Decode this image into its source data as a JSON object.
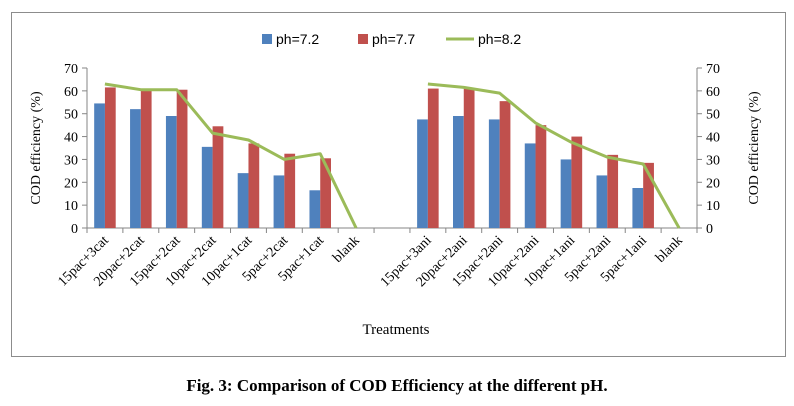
{
  "chart_data": {
    "type": "bar",
    "title": "",
    "xlabel": "Treatments",
    "ylabel": "COD efficiency (%)",
    "y2label": "COD efficiency (%)",
    "ylim": [
      0,
      70
    ],
    "yticks": [
      0,
      10,
      20,
      30,
      40,
      50,
      60,
      70
    ],
    "legend_position": "top",
    "grid": false,
    "categories": [
      "15pac+3cat",
      "20pac+2cat",
      "15pac+2cat",
      "10pac+2cat",
      "10pac+1cat",
      "5pac+2cat",
      "5pac+1cat",
      "blank",
      "",
      "15pac+3ani",
      "20pac+2ani",
      "15pac+2ani",
      "10pac+2ani",
      "10pac+1ani",
      "5pac+2ani",
      "5pac+1ani",
      "blank"
    ],
    "series": [
      {
        "name": "ph=7.2",
        "kind": "bar",
        "color": "#4f81bd",
        "values": [
          54.5,
          52,
          49,
          35.5,
          24,
          23,
          16.5,
          0,
          null,
          47.5,
          49,
          47.5,
          37,
          30,
          23,
          17.5,
          0
        ]
      },
      {
        "name": "ph=7.7",
        "kind": "bar",
        "color": "#c0504d",
        "values": [
          61.5,
          60.5,
          60.5,
          44.5,
          37,
          32.5,
          30.5,
          0,
          null,
          61,
          61,
          55.5,
          45,
          40,
          32,
          28.5,
          0
        ]
      },
      {
        "name": "ph=8.2",
        "kind": "line",
        "color": "#9bbb59",
        "values": [
          63,
          60.5,
          60.5,
          41.5,
          38.5,
          30,
          32.5,
          0,
          null,
          63,
          61.5,
          59,
          46,
          37.5,
          31,
          28,
          0
        ]
      }
    ]
  },
  "caption": "Fig. 3: Comparison of COD Efficiency at the different pH."
}
